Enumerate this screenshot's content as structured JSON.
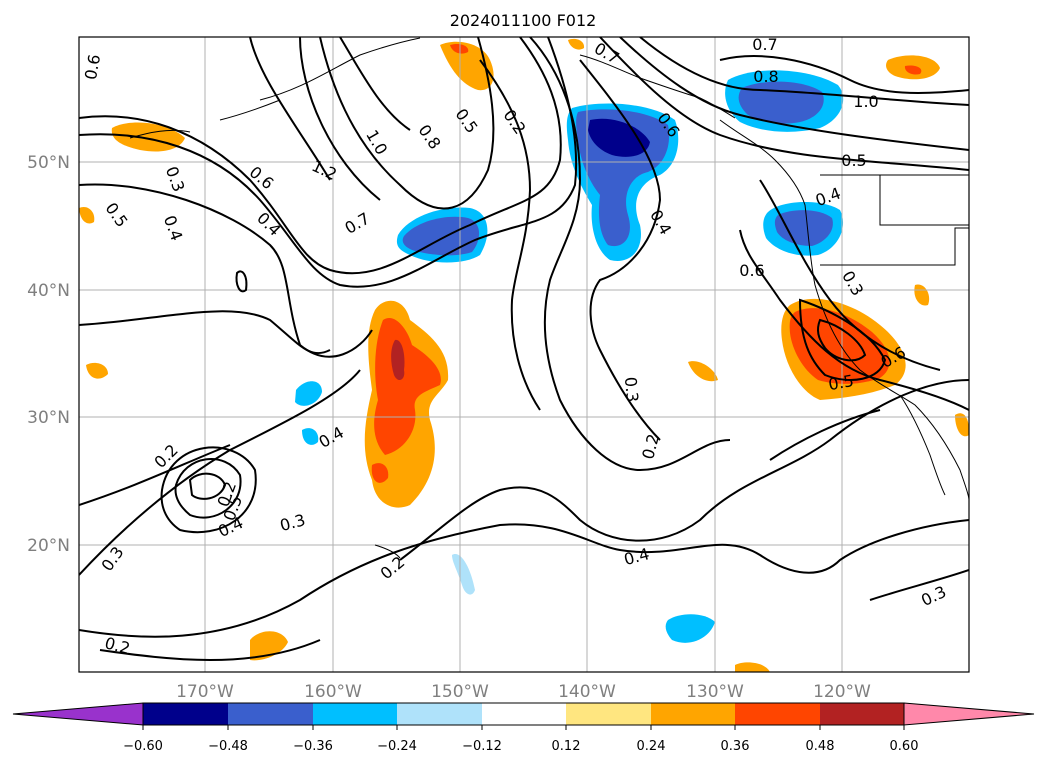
{
  "title": "2024011100 F012",
  "map": {
    "lat_labels": [
      "50°N",
      "40°N",
      "30°N",
      "20°N"
    ],
    "lon_labels": [
      "170°W",
      "160°W",
      "150°W",
      "140°W",
      "130°W",
      "120°W"
    ],
    "contour_labels": [
      "0.6",
      "0.3",
      "0.5",
      "0.4",
      "0.6",
      "0.4",
      "0.2",
      "1.2",
      "1.0",
      "0.8",
      "0.7",
      "0.5",
      "0.2",
      "0.7",
      "0.6",
      "0.4",
      "0.7",
      "0.8",
      "1.0",
      "0.5",
      "0.4",
      "0.6",
      "0.3",
      "0.6",
      "0.5",
      "0.3",
      "0.2",
      "0.4",
      "0.2",
      "0.5",
      "0.4",
      "0.3",
      "0.3",
      "0.2",
      "0.2",
      "0.4",
      "0.3"
    ],
    "colors": {
      "neg_outer": "#ffffff",
      "coast": "#000000",
      "grid": "#b0b0b0"
    }
  },
  "colorbar": {
    "ticks": [
      "−0.60",
      "−0.48",
      "−0.36",
      "−0.24",
      "−0.12",
      "0.12",
      "0.24",
      "0.36",
      "0.48",
      "0.60"
    ],
    "levels": [
      -0.6,
      -0.48,
      -0.36,
      -0.24,
      -0.12,
      0.12,
      0.24,
      0.36,
      0.48,
      0.6
    ],
    "under_color": "#9932cc",
    "over_color": "#ff88aa",
    "bins": [
      "#00008b",
      "#3a5fcd",
      "#00bfff",
      "#afe2fa",
      "#ffffff",
      "#ffe680",
      "#ffa500",
      "#ff4500",
      "#b22222"
    ]
  }
}
